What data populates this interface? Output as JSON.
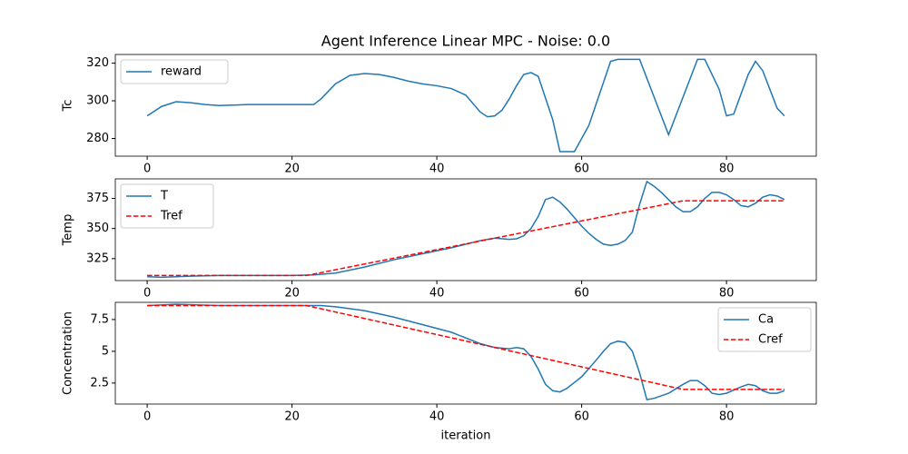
{
  "chart_data": [
    {
      "type": "line",
      "title": "Agent Inference Linear MPC - Noise: 0.0",
      "ylabel": "Tc",
      "xlim": [
        -4.4,
        92.4
      ],
      "ylim": [
        270.6,
        324.6
      ],
      "xticks": [
        0,
        20,
        40,
        60,
        80
      ],
      "yticks": [
        280,
        300,
        320
      ],
      "legend": "upper left",
      "series": [
        {
          "name": "reward",
          "color": "#1f77b4",
          "dashed": false,
          "x": [
            0,
            2,
            4,
            6,
            8,
            10,
            14,
            18,
            23,
            24,
            26,
            28,
            30,
            32,
            34,
            36,
            38,
            40,
            42,
            44,
            46,
            47,
            48,
            49,
            50,
            51,
            52,
            53,
            54,
            56,
            57,
            59,
            61,
            64,
            65,
            68,
            72,
            76,
            77,
            79,
            80,
            81,
            83,
            84,
            85,
            87,
            88
          ],
          "values": [
            292,
            297,
            299.5,
            299,
            298,
            297.5,
            298,
            298,
            298,
            301,
            309,
            313.5,
            314.5,
            314,
            312.5,
            310.5,
            309,
            308,
            306.5,
            303,
            294,
            291.5,
            292,
            295,
            301,
            308,
            314,
            315,
            313,
            290,
            273,
            273,
            287,
            321,
            322,
            322,
            282,
            322,
            322,
            306,
            292,
            293,
            314,
            321,
            316,
            296,
            292
          ]
        }
      ]
    },
    {
      "type": "line",
      "ylabel": "Temp",
      "xlim": [
        -4.4,
        92.4
      ],
      "ylim": [
        306.8,
        391.2
      ],
      "xticks": [
        0,
        20,
        40,
        60,
        80
      ],
      "yticks": [
        325,
        350,
        375
      ],
      "legend": "upper left",
      "series": [
        {
          "name": "T",
          "color": "#1f77b4",
          "dashed": false,
          "x": [
            0,
            2,
            6,
            10,
            20,
            23,
            26,
            30,
            34,
            38,
            42,
            46,
            48,
            50,
            51,
            52,
            53,
            54,
            55,
            56,
            57,
            58,
            59,
            60,
            61,
            62,
            63,
            64,
            65,
            66,
            67,
            68,
            69,
            70,
            71,
            72,
            73,
            74,
            75,
            76,
            77,
            78,
            79,
            80,
            81,
            82,
            83,
            84,
            85,
            86,
            87,
            88
          ],
          "values": [
            310,
            309.5,
            310.5,
            311,
            311,
            311.5,
            313,
            318,
            324,
            329,
            334,
            340,
            342,
            341,
            341.5,
            344,
            350,
            360,
            374,
            376,
            372,
            366,
            359,
            352,
            346,
            341,
            337,
            336,
            337,
            340,
            347,
            370,
            389,
            385,
            380,
            374,
            368,
            364,
            364,
            368,
            375,
            380,
            380,
            378,
            374,
            369,
            368,
            371,
            376,
            378,
            377,
            374
          ]
        },
        {
          "name": "Tref",
          "color": "#ff0000",
          "dashed": true,
          "x": [
            0,
            22,
            74,
            88
          ],
          "values": [
            311,
            311,
            373,
            373
          ]
        }
      ]
    },
    {
      "type": "line",
      "ylabel": "Concentration",
      "xlabel": "iteration",
      "xlim": [
        -4.4,
        92.4
      ],
      "ylim": [
        0.85,
        8.85
      ],
      "xticks": [
        0,
        20,
        40,
        60,
        80
      ],
      "yticks": [
        2.5,
        5.0,
        7.5
      ],
      "legend": "upper right",
      "series": [
        {
          "name": "Ca",
          "color": "#1f77b4",
          "dashed": false,
          "x": [
            0,
            4,
            10,
            22,
            24,
            26,
            30,
            34,
            38,
            42,
            46,
            48,
            50,
            51,
            52,
            53,
            54,
            55,
            56,
            57,
            58,
            60,
            62,
            63,
            64,
            65,
            66,
            67,
            68,
            69,
            70,
            72,
            74,
            75,
            76,
            77,
            78,
            79,
            80,
            82,
            83,
            84,
            85,
            86,
            87,
            88
          ],
          "values": [
            8.6,
            8.7,
            8.6,
            8.6,
            8.6,
            8.5,
            8.2,
            7.7,
            7.1,
            6.5,
            5.6,
            5.3,
            5.2,
            5.3,
            5.2,
            4.6,
            3.6,
            2.4,
            1.9,
            1.8,
            2.1,
            3.0,
            4.3,
            5.0,
            5.6,
            5.8,
            5.7,
            5.0,
            3.3,
            1.2,
            1.3,
            1.7,
            2.4,
            2.7,
            2.7,
            2.3,
            1.7,
            1.6,
            1.7,
            2.2,
            2.4,
            2.3,
            1.9,
            1.7,
            1.7,
            1.9
          ]
        },
        {
          "name": "Cref",
          "color": "#ff0000",
          "dashed": true,
          "x": [
            0,
            22,
            74,
            88
          ],
          "values": [
            8.6,
            8.6,
            2.0,
            2.0
          ]
        }
      ]
    }
  ]
}
